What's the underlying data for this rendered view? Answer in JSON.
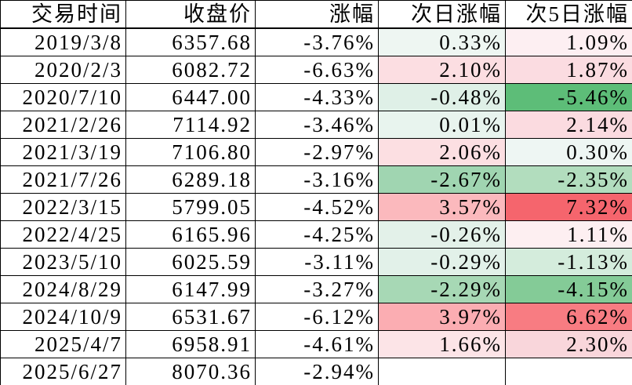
{
  "table": {
    "headers": [
      {
        "label": "交易时间"
      },
      {
        "label": "收盘价"
      },
      {
        "label": "涨幅"
      },
      {
        "label": "次日涨幅"
      },
      {
        "label": "次5日涨幅"
      }
    ],
    "rows": [
      {
        "date": "2019/3/8",
        "close": "6357.68",
        "chg": "-3.76%",
        "next1": "0.33%",
        "next1_bg": "#eef6f2",
        "next5": "1.09%",
        "next5_bg": "#fdeff2"
      },
      {
        "date": "2020/2/3",
        "close": "6082.72",
        "chg": "-6.63%",
        "next1": "2.10%",
        "next1_bg": "#fcdee2",
        "next5": "1.87%",
        "next5_bg": "#fbdce1"
      },
      {
        "date": "2020/7/10",
        "close": "6447.00",
        "chg": "-4.33%",
        "next1": "-0.48%",
        "next1_bg": "#dff0e7",
        "next5": "-5.46%",
        "next5_bg": "#5dbd78"
      },
      {
        "date": "2021/2/26",
        "close": "7114.92",
        "chg": "-3.46%",
        "next1": "0.01%",
        "next1_bg": "#e8f4ee",
        "next5": "2.14%",
        "next5_bg": "#fbdbe0"
      },
      {
        "date": "2021/3/19",
        "close": "7106.80",
        "chg": "-2.97%",
        "next1": "2.06%",
        "next1_bg": "#fcdfe2",
        "next5": "0.30%",
        "next5_bg": "#eef6f3"
      },
      {
        "date": "2021/7/26",
        "close": "6289.18",
        "chg": "-3.16%",
        "next1": "-2.67%",
        "next1_bg": "#a0d5b1",
        "next5": "-2.35%",
        "next5_bg": "#b2ddbe"
      },
      {
        "date": "2022/3/15",
        "close": "5799.05",
        "chg": "-4.52%",
        "next1": "3.57%",
        "next1_bg": "#fbb9bd",
        "next5": "7.32%",
        "next5_bg": "#f5656d"
      },
      {
        "date": "2022/4/25",
        "close": "6165.96",
        "chg": "-4.25%",
        "next1": "-0.26%",
        "next1_bg": "#e3f1e9",
        "next5": "1.11%",
        "next5_bg": "#fdeff1"
      },
      {
        "date": "2023/5/10",
        "close": "6025.59",
        "chg": "-3.11%",
        "next1": "-0.29%",
        "next1_bg": "#e2f1e9",
        "next5": "-1.13%",
        "next5_bg": "#d4ecdc"
      },
      {
        "date": "2024/8/29",
        "close": "6147.99",
        "chg": "-3.27%",
        "next1": "-2.29%",
        "next1_bg": "#a7d8b5",
        "next5": "-4.15%",
        "next5_bg": "#84cb97"
      },
      {
        "date": "2024/10/9",
        "close": "6531.67",
        "chg": "-6.12%",
        "next1": "3.97%",
        "next1_bg": "#fbadb2",
        "next5": "6.62%",
        "next5_bg": "#f87c82"
      },
      {
        "date": "2025/4/7",
        "close": "6958.91",
        "chg": "-4.61%",
        "next1": "1.66%",
        "next1_bg": "#fce4e7",
        "next5": "2.30%",
        "next5_bg": "#f9d6db"
      },
      {
        "date": "2025/6/27",
        "close": "8070.36",
        "chg": "-2.94%",
        "next1": "",
        "next1_bg": "#ffffff",
        "next5": "",
        "next5_bg": "#ffffff"
      }
    ],
    "grid_color": "#000000",
    "text_color": "#000000",
    "color_scale": {
      "negative_end": "#63be7b",
      "midpoint": "#ffffff",
      "positive_end": "#f8696b"
    }
  },
  "chart_data": {
    "type": "table",
    "title": "",
    "columns": [
      "交易时间",
      "收盘价",
      "涨幅",
      "次日涨幅",
      "次5日涨幅"
    ],
    "units": {
      "涨幅": "%",
      "次日涨幅": "%",
      "次5日涨幅": "%"
    },
    "rows": [
      [
        "2019/3/8",
        6357.68,
        -3.76,
        0.33,
        1.09
      ],
      [
        "2020/2/3",
        6082.72,
        -6.63,
        2.1,
        1.87
      ],
      [
        "2020/7/10",
        6447.0,
        -4.33,
        -0.48,
        -5.46
      ],
      [
        "2021/2/26",
        7114.92,
        -3.46,
        0.01,
        2.14
      ],
      [
        "2021/3/19",
        7106.8,
        -2.97,
        2.06,
        0.3
      ],
      [
        "2021/7/26",
        6289.18,
        -3.16,
        -2.67,
        -2.35
      ],
      [
        "2022/3/15",
        5799.05,
        -4.52,
        3.57,
        7.32
      ],
      [
        "2022/4/25",
        6165.96,
        -4.25,
        -0.26,
        1.11
      ],
      [
        "2023/5/10",
        6025.59,
        -3.11,
        -0.29,
        -1.13
      ],
      [
        "2024/8/29",
        6147.99,
        -3.27,
        -2.29,
        -4.15
      ],
      [
        "2024/10/9",
        6531.67,
        -6.12,
        3.97,
        6.62
      ],
      [
        "2025/4/7",
        6958.91,
        -4.61,
        1.66,
        2.3
      ],
      [
        "2025/6/27",
        8070.36,
        -2.94,
        null,
        null
      ]
    ],
    "layout": {
      "grid": true,
      "conditional_format_columns": [
        "次日涨幅",
        "次5日涨幅"
      ]
    }
  }
}
